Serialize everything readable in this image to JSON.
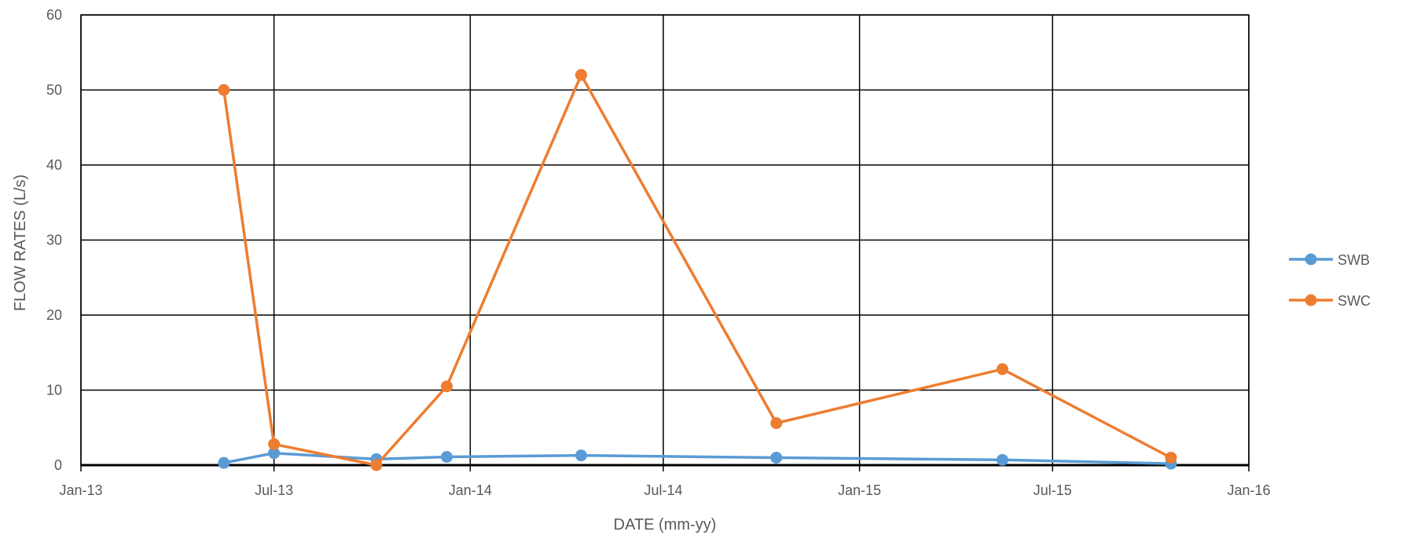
{
  "chart_data": {
    "type": "line",
    "title": "",
    "xlabel": "DATE (mm-yy)",
    "ylabel": "FLOW RATES (L/s)",
    "xlim": [
      "2013-01-01",
      "2016-01-01"
    ],
    "ylim": [
      0,
      60
    ],
    "x_ticks": [
      {
        "date": "2013-01-01",
        "label": "Jan-13"
      },
      {
        "date": "2013-07-01",
        "label": "Jul-13"
      },
      {
        "date": "2014-01-01",
        "label": "Jan-14"
      },
      {
        "date": "2014-07-01",
        "label": "Jul-14"
      },
      {
        "date": "2015-01-01",
        "label": "Jan-15"
      },
      {
        "date": "2015-07-01",
        "label": "Jul-15"
      },
      {
        "date": "2016-01-01",
        "label": "Jan-16"
      }
    ],
    "y_ticks": [
      0,
      10,
      20,
      30,
      40,
      50,
      60
    ],
    "grid": true,
    "legend_position": "right",
    "series": [
      {
        "name": "SWB",
        "color": "#5B9BD5",
        "points": [
          {
            "x": "2013-05-15",
            "y": 0.3
          },
          {
            "x": "2013-07-01",
            "y": 1.6
          },
          {
            "x": "2013-10-05",
            "y": 0.8
          },
          {
            "x": "2013-12-10",
            "y": 1.1
          },
          {
            "x": "2014-04-15",
            "y": 1.3
          },
          {
            "x": "2014-10-15",
            "y": 1.0
          },
          {
            "x": "2015-05-15",
            "y": 0.7
          },
          {
            "x": "2015-10-20",
            "y": 0.2
          }
        ]
      },
      {
        "name": "SWC",
        "color": "#ED7D31",
        "points": [
          {
            "x": "2013-05-15",
            "y": 50.0
          },
          {
            "x": "2013-07-01",
            "y": 2.8
          },
          {
            "x": "2013-10-05",
            "y": 0.0
          },
          {
            "x": "2013-12-10",
            "y": 10.5
          },
          {
            "x": "2014-04-15",
            "y": 52.0
          },
          {
            "x": "2014-10-15",
            "y": 5.6
          },
          {
            "x": "2015-05-15",
            "y": 12.8
          },
          {
            "x": "2015-10-20",
            "y": 1.0
          }
        ]
      }
    ]
  }
}
